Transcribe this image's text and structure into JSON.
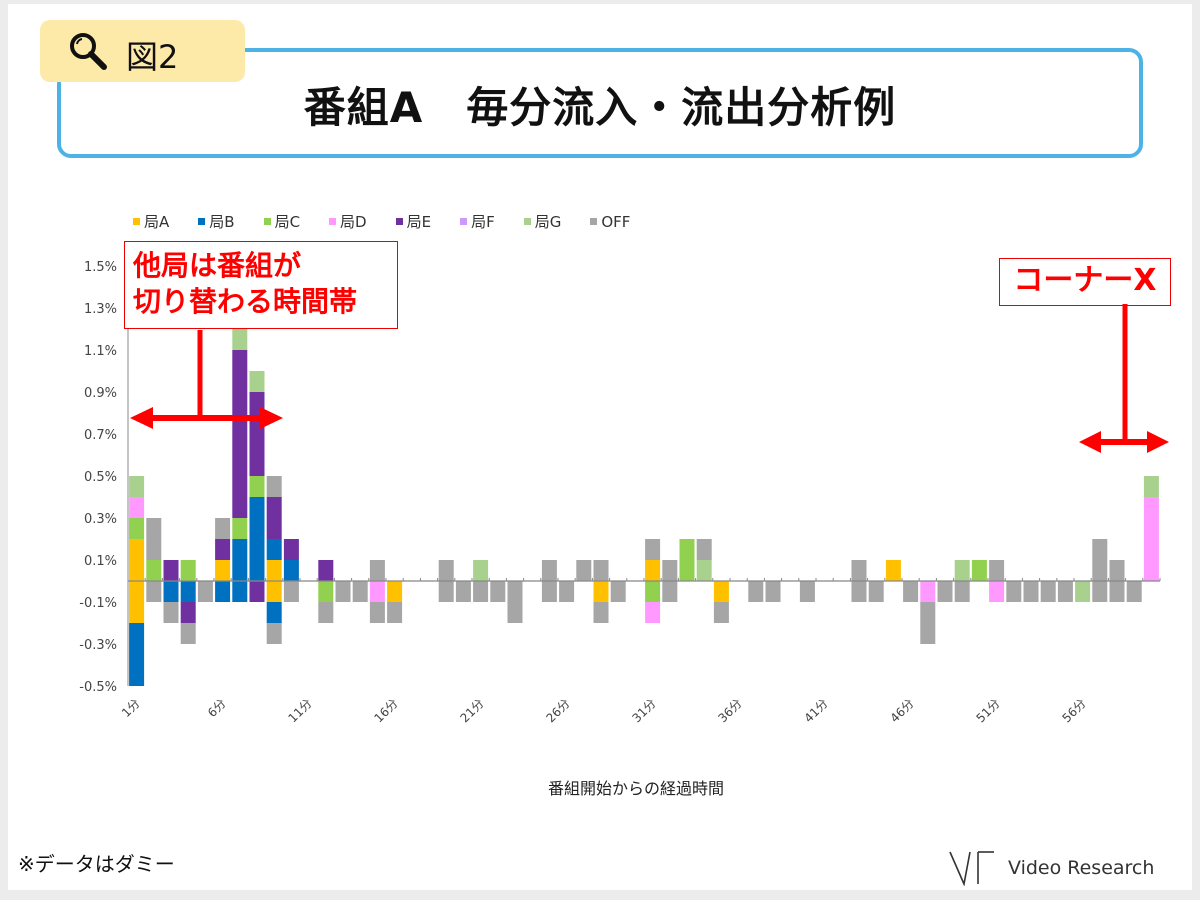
{
  "figure_tag": "図2",
  "title": "番組A　毎分流入・流出分析例",
  "annotations": {
    "switching": [
      "他局は番組が",
      "切り替わる時間帯"
    ],
    "corner": "コーナーX"
  },
  "footnote": "※データはダミー",
  "logo_text": "Video Research",
  "chart_data": {
    "type": "bar",
    "stacked": true,
    "title": "",
    "xlabel": "番組開始からの経過時間",
    "ylabel": "",
    "ylim": [
      -0.5,
      1.6
    ],
    "yticks": [
      "-0.5%",
      "-0.3%",
      "-0.1%",
      "0.1%",
      "0.3%",
      "0.5%",
      "0.7%",
      "0.9%",
      "1.1%",
      "1.3%",
      "1.5%"
    ],
    "ytick_values": [
      -0.5,
      -0.3,
      -0.1,
      0.1,
      0.3,
      0.5,
      0.7,
      0.9,
      1.1,
      1.3,
      1.5
    ],
    "xticks": [
      "1分",
      "6分",
      "11分",
      "16分",
      "21分",
      "26分",
      "31分",
      "36分",
      "41分",
      "46分",
      "51分",
      "56分"
    ],
    "xtick_minutes": [
      1,
      6,
      11,
      16,
      21,
      26,
      31,
      36,
      41,
      46,
      51,
      56
    ],
    "minutes": 60,
    "unit": "%",
    "legend_position": "top-left",
    "series": [
      {
        "key": "A",
        "name": "局A",
        "color": "#FFC000"
      },
      {
        "key": "B",
        "name": "局B",
        "color": "#0070C0"
      },
      {
        "key": "C",
        "name": "局C",
        "color": "#92D050"
      },
      {
        "key": "D",
        "name": "局D",
        "color": "#FF99FF"
      },
      {
        "key": "E",
        "name": "局E",
        "color": "#7030A0"
      },
      {
        "key": "F",
        "name": "局F",
        "color": "#CC99FF"
      },
      {
        "key": "G",
        "name": "局G",
        "color": "#A9D18E"
      },
      {
        "key": "OFF",
        "name": "OFF",
        "color": "#A6A6A6"
      }
    ],
    "data": [
      {
        "minute": 1,
        "pos": {
          "A": 0.2,
          "C": 0.1,
          "D": 0.1,
          "G": 0.1
        },
        "neg": {
          "A": -0.2,
          "B": -0.3
        }
      },
      {
        "minute": 2,
        "pos": {
          "C": 0.1,
          "OFF": 0.2
        },
        "neg": {
          "OFF": -0.1
        }
      },
      {
        "minute": 3,
        "pos": {
          "E": 0.1
        },
        "neg": {
          "B": -0.1,
          "OFF": -0.1
        }
      },
      {
        "minute": 4,
        "pos": {
          "C": 0.1
        },
        "neg": {
          "B": -0.1,
          "E": -0.1,
          "OFF": -0.1
        }
      },
      {
        "minute": 5,
        "pos": {},
        "neg": {
          "OFF": -0.1
        }
      },
      {
        "minute": 6,
        "pos": {
          "A": 0.1,
          "E": 0.1,
          "OFF": 0.1
        },
        "neg": {
          "B": -0.1
        }
      },
      {
        "minute": 7,
        "pos": {
          "B": 0.2,
          "C": 0.1,
          "E": 0.8,
          "G": 0.1
        },
        "neg": {
          "B": -0.1
        }
      },
      {
        "minute": 8,
        "pos": {
          "B": 0.4,
          "C": 0.1,
          "E": 0.4,
          "G": 0.1
        },
        "neg": {
          "E": -0.1
        }
      },
      {
        "minute": 9,
        "pos": {
          "A": 0.1,
          "B": 0.1,
          "E": 0.2,
          "OFF": 0.1
        },
        "neg": {
          "A": -0.1,
          "B": -0.1,
          "OFF": -0.1
        }
      },
      {
        "minute": 10,
        "pos": {
          "B": 0.1,
          "E": 0.1
        },
        "neg": {
          "OFF": -0.1
        }
      },
      {
        "minute": 12,
        "pos": {
          "E": 0.1
        },
        "neg": {
          "C": -0.1,
          "OFF": -0.1
        }
      },
      {
        "minute": 13,
        "pos": {},
        "neg": {
          "OFF": -0.1
        }
      },
      {
        "minute": 14,
        "pos": {},
        "neg": {
          "OFF": -0.1
        }
      },
      {
        "minute": 15,
        "pos": {
          "OFF": 0.1
        },
        "neg": {
          "D": -0.1,
          "OFF": -0.1
        }
      },
      {
        "minute": 16,
        "pos": {},
        "neg": {
          "A": -0.1,
          "OFF": -0.1
        }
      },
      {
        "minute": 19,
        "pos": {
          "OFF": 0.1
        },
        "neg": {
          "OFF": -0.1
        }
      },
      {
        "minute": 20,
        "pos": {},
        "neg": {
          "OFF": -0.1
        }
      },
      {
        "minute": 21,
        "pos": {
          "G": 0.1
        },
        "neg": {
          "OFF": -0.1
        }
      },
      {
        "minute": 22,
        "pos": {},
        "neg": {
          "OFF": -0.1
        }
      },
      {
        "minute": 23,
        "pos": {},
        "neg": {
          "OFF": -0.2
        }
      },
      {
        "minute": 25,
        "pos": {
          "OFF": 0.1
        },
        "neg": {
          "OFF": -0.1
        }
      },
      {
        "minute": 26,
        "pos": {},
        "neg": {
          "OFF": -0.1
        }
      },
      {
        "minute": 27,
        "pos": {
          "OFF": 0.1
        },
        "neg": {}
      },
      {
        "minute": 28,
        "pos": {
          "OFF": 0.1
        },
        "neg": {
          "A": -0.1,
          "OFF": -0.1
        }
      },
      {
        "minute": 29,
        "pos": {},
        "neg": {
          "OFF": -0.1
        }
      },
      {
        "minute": 31,
        "pos": {
          "A": 0.1,
          "OFF": 0.1
        },
        "neg": {
          "C": -0.1,
          "D": -0.1
        }
      },
      {
        "minute": 32,
        "pos": {
          "OFF": 0.1
        },
        "neg": {
          "OFF": -0.1
        }
      },
      {
        "minute": 33,
        "pos": {
          "C": 0.2
        },
        "neg": {}
      },
      {
        "minute": 34,
        "pos": {
          "G": 0.1,
          "OFF": 0.1
        },
        "neg": {}
      },
      {
        "minute": 35,
        "pos": {},
        "neg": {
          "A": -0.1,
          "OFF": -0.1
        }
      },
      {
        "minute": 37,
        "pos": {},
        "neg": {
          "OFF": -0.1
        }
      },
      {
        "minute": 38,
        "pos": {},
        "neg": {
          "OFF": -0.1
        }
      },
      {
        "minute": 40,
        "pos": {},
        "neg": {
          "OFF": -0.1
        }
      },
      {
        "minute": 43,
        "pos": {
          "OFF": 0.1
        },
        "neg": {
          "OFF": -0.1
        }
      },
      {
        "minute": 44,
        "pos": {},
        "neg": {
          "OFF": -0.1
        }
      },
      {
        "minute": 45,
        "pos": {
          "A": 0.1
        },
        "neg": {}
      },
      {
        "minute": 46,
        "pos": {},
        "neg": {
          "OFF": -0.1
        }
      },
      {
        "minute": 47,
        "pos": {},
        "neg": {
          "D": -0.1,
          "OFF": -0.2
        }
      },
      {
        "minute": 48,
        "pos": {},
        "neg": {
          "OFF": -0.1
        }
      },
      {
        "minute": 49,
        "pos": {
          "G": 0.1
        },
        "neg": {
          "OFF": -0.1
        }
      },
      {
        "minute": 50,
        "pos": {
          "C": 0.1
        },
        "neg": {}
      },
      {
        "minute": 51,
        "pos": {
          "OFF": 0.1
        },
        "neg": {
          "D": -0.1
        }
      },
      {
        "minute": 52,
        "pos": {},
        "neg": {
          "OFF": -0.1
        }
      },
      {
        "minute": 53,
        "pos": {},
        "neg": {
          "OFF": -0.1
        }
      },
      {
        "minute": 54,
        "pos": {},
        "neg": {
          "OFF": -0.1
        }
      },
      {
        "minute": 55,
        "pos": {},
        "neg": {
          "OFF": -0.1
        }
      },
      {
        "minute": 56,
        "pos": {},
        "neg": {
          "G": -0.1
        }
      },
      {
        "minute": 57,
        "pos": {
          "OFF": 0.2
        },
        "neg": {
          "OFF": -0.1
        }
      },
      {
        "minute": 58,
        "pos": {
          "OFF": 0.1
        },
        "neg": {
          "OFF": -0.1
        }
      },
      {
        "minute": 59,
        "pos": {},
        "neg": {
          "OFF": -0.1
        }
      },
      {
        "minute": 60,
        "pos": {
          "D": 0.4,
          "G": 0.1
        },
        "neg": {}
      }
    ]
  }
}
